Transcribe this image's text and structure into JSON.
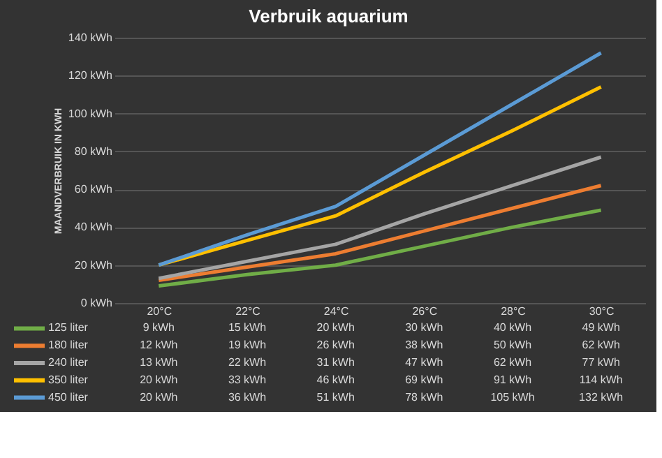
{
  "chart_data": {
    "type": "line",
    "title": "Verbruik aquarium",
    "ylabel": "MAANDVERBRUIK IN KWH",
    "categories": [
      "20°C",
      "22°C",
      "24°C",
      "26°C",
      "28°C",
      "30°C"
    ],
    "series": [
      {
        "name": "125 liter",
        "color": "#70ad47",
        "values": [
          9,
          15,
          20,
          30,
          40,
          49
        ],
        "value_labels": [
          "9 kWh",
          "15 kWh",
          "20 kWh",
          "30 kWh",
          "40 kWh",
          "49 kWh"
        ]
      },
      {
        "name": "180 liter",
        "color": "#ed7d31",
        "values": [
          12,
          19,
          26,
          38,
          50,
          62
        ],
        "value_labels": [
          "12 kWh",
          "19 kWh",
          "26 kWh",
          "38 kWh",
          "50 kWh",
          "62 kWh"
        ]
      },
      {
        "name": "240 liter",
        "color": "#a5a5a5",
        "values": [
          13,
          22,
          31,
          47,
          62,
          77
        ],
        "value_labels": [
          "13 kWh",
          "22 kWh",
          "31 kWh",
          "47 kWh",
          "62 kWh",
          "77 kWh"
        ]
      },
      {
        "name": "350 liter",
        "color": "#ffc000",
        "values": [
          20,
          33,
          46,
          69,
          91,
          114
        ],
        "value_labels": [
          "20 kWh",
          "33 kWh",
          "46 kWh",
          "69 kWh",
          "91 kWh",
          "114 kWh"
        ]
      },
      {
        "name": "450 liter",
        "color": "#5b9bd5",
        "values": [
          20,
          36,
          51,
          78,
          105,
          132
        ],
        "value_labels": [
          "20 kWh",
          "36 kWh",
          "51 kWh",
          "78 kWh",
          "105 kWh",
          "132 kWh"
        ]
      }
    ],
    "ylim": [
      0,
      140
    ],
    "yticks": [
      {
        "value": 0,
        "label": "0 kWh"
      },
      {
        "value": 20,
        "label": "20 kWh"
      },
      {
        "value": 40,
        "label": "40 kWh"
      },
      {
        "value": 60,
        "label": "60 kWh"
      },
      {
        "value": 80,
        "label": "80 kWh"
      },
      {
        "value": 100,
        "label": "100 kWh"
      },
      {
        "value": 120,
        "label": "120 kWh"
      },
      {
        "value": 140,
        "label": "140 kWh"
      }
    ],
    "grid": "y",
    "legend": "bottom",
    "marker": "none",
    "line_style": "solid"
  }
}
